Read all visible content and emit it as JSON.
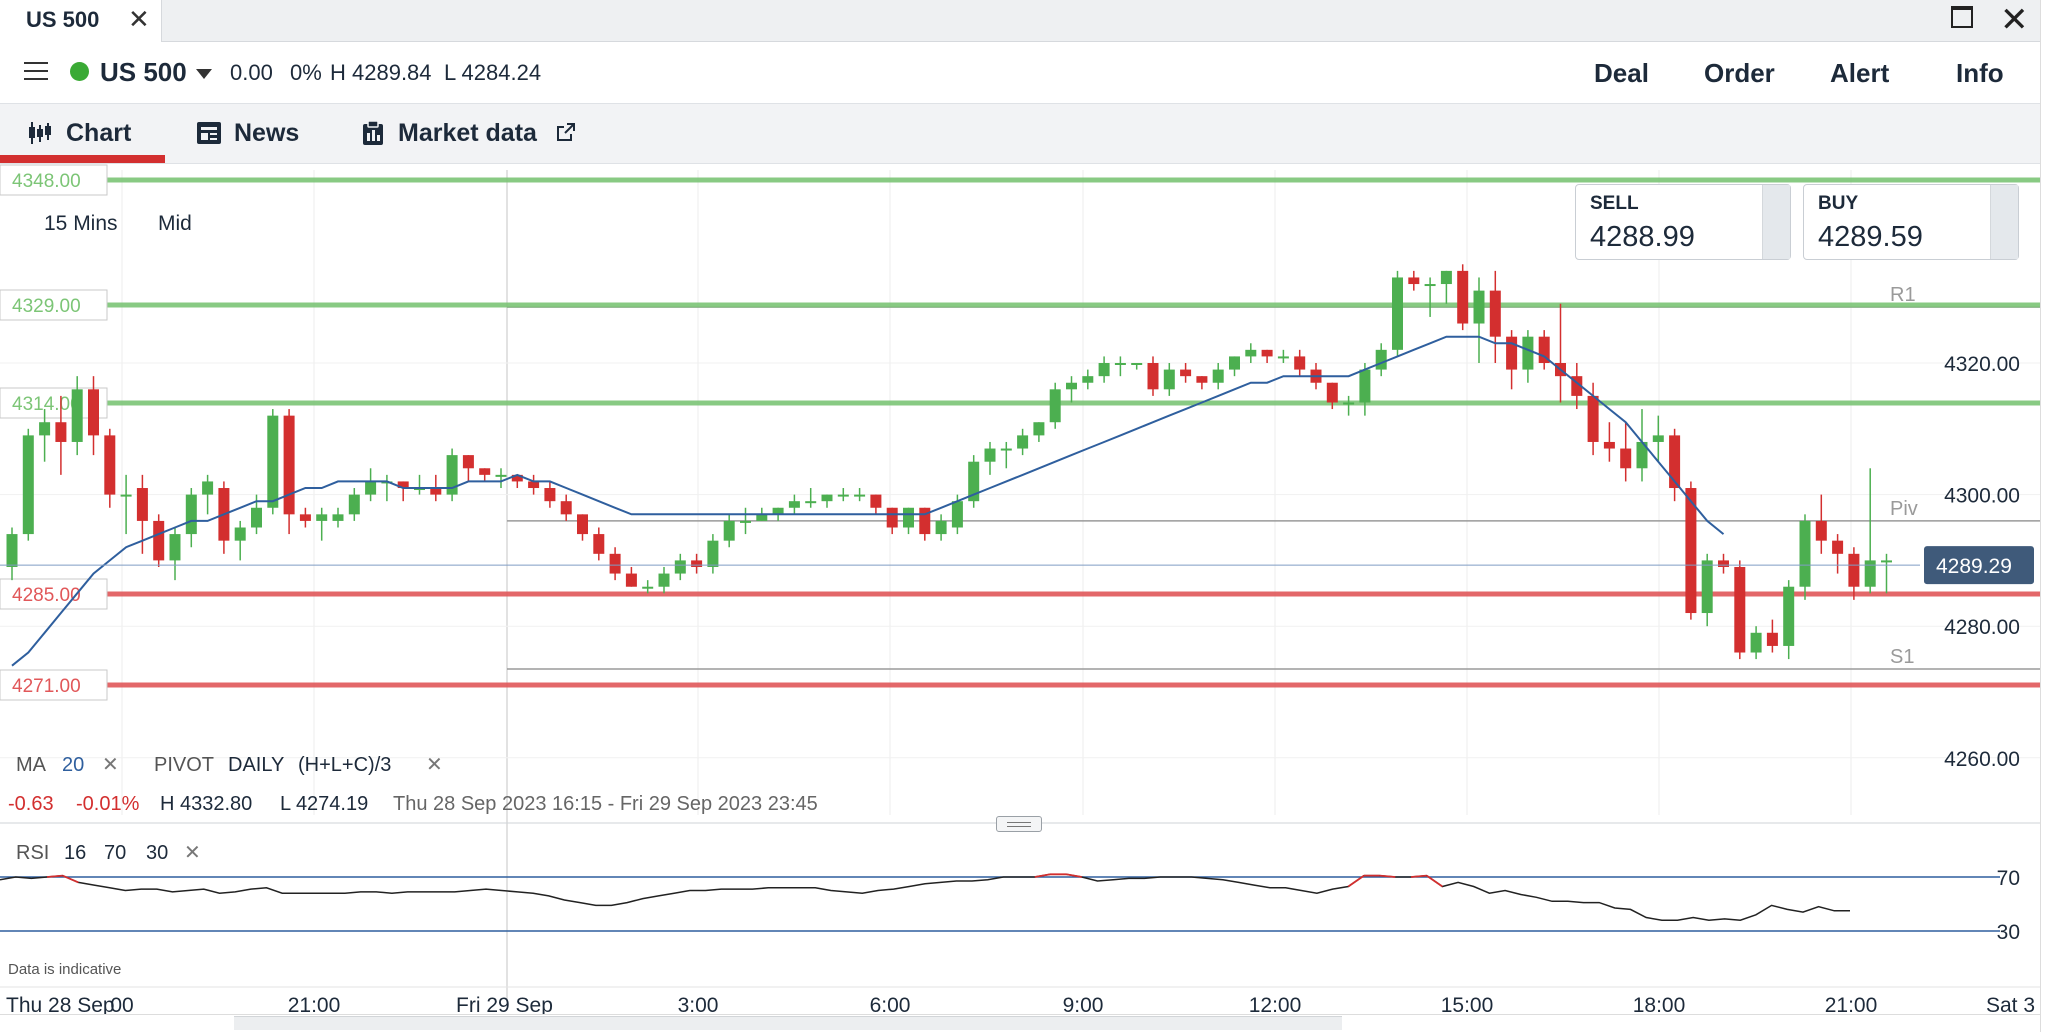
{
  "titlebar": {
    "tab_label": "US 500",
    "close_glyph": "✕",
    "win_close_glyph": "✕"
  },
  "header": {
    "instrument": "US 500",
    "change": "0.00",
    "change_pct": "0%",
    "high": "H 4289.84",
    "low": "L 4284.24",
    "actions": [
      "Deal",
      "Order",
      "Alert",
      "Info"
    ]
  },
  "tabs": [
    {
      "label": "Chart",
      "icon": "candlestick-icon",
      "active": true
    },
    {
      "label": "News",
      "icon": "newspaper-icon",
      "active": false
    },
    {
      "label": "Market data",
      "icon": "clipboard-icon",
      "active": false,
      "external_icon": "external-link-icon"
    }
  ],
  "chart": {
    "timeframe": "15 Mins",
    "price_type": "Mid",
    "sell_label": "SELL",
    "sell_price": "4288.99",
    "buy_label": "BUY",
    "buy_price": "4289.59",
    "ma_label": "MA",
    "ma_period": "20",
    "pivot_label": "PIVOT",
    "pivot_period": "DAILY",
    "pivot_formula": "(H+L+C)/3",
    "range_change": "-0.63",
    "range_change_pct": "-0.01%",
    "range_high": "H 4332.80",
    "range_low": "L 4274.19",
    "range_dates": "Thu 28 Sep 2023 16:15 - Fri 29 Sep 2023 23:45",
    "rsi_label": "RSI",
    "rsi_period": "16",
    "rsi_upper": "70",
    "rsi_lower": "30",
    "disclaimer": "Data is indicative",
    "colors": {
      "up": "#4caf50",
      "down": "#d32f2f",
      "ma": "#2f5f9e",
      "support": "#e15759",
      "resistance": "#7cc576"
    }
  },
  "chart_data": {
    "type": "candlestick",
    "title": "US 500",
    "interval": "15 Mins",
    "ylim": [
      4255,
      4350
    ],
    "y_ticks": [
      "4320.00",
      "4300.00",
      "4280.00",
      "4260.00"
    ],
    "x_ticks": [
      "Thu 28 Sep",
      "00",
      "21:00",
      "Fri 29 Sep",
      "3:00",
      "6:00",
      "9:00",
      "12:00",
      "15:00",
      "18:00",
      "21:00",
      "Sat 3"
    ],
    "last_price": "4289.29",
    "alert_levels": [
      {
        "label": "4348.00",
        "value": 4348,
        "kind": "resistance"
      },
      {
        "label": "4329.00",
        "value": 4329,
        "kind": "resistance"
      },
      {
        "label": "4314.00",
        "value": 4314,
        "kind": "resistance"
      },
      {
        "label": "4285.00",
        "value": 4285,
        "kind": "support"
      },
      {
        "label": "4271.00",
        "value": 4271,
        "kind": "support"
      }
    ],
    "pivots": [
      {
        "label": "R1",
        "value": 4328.5
      },
      {
        "label": "Piv",
        "value": 4296
      },
      {
        "label": "S1",
        "value": 4273.5
      }
    ],
    "candles": [
      [
        4289,
        4295,
        4287,
        4294
      ],
      [
        4294,
        4310,
        4293,
        4309
      ],
      [
        4309,
        4313,
        4305,
        4311
      ],
      [
        4311,
        4315,
        4303,
        4308
      ],
      [
        4308,
        4318,
        4306,
        4316
      ],
      [
        4316,
        4318,
        4306,
        4309
      ],
      [
        4309,
        4310,
        4298,
        4300
      ],
      [
        4300,
        4303,
        4294,
        4300
      ],
      [
        4301,
        4303,
        4291,
        4296
      ],
      [
        4296,
        4297,
        4289,
        4290
      ],
      [
        4290,
        4295,
        4287,
        4294
      ],
      [
        4294,
        4301,
        4292,
        4300
      ],
      [
        4300,
        4303,
        4297,
        4302
      ],
      [
        4301,
        4302,
        4291,
        4293
      ],
      [
        4293,
        4296,
        4290,
        4295
      ],
      [
        4295,
        4300,
        4294,
        4298
      ],
      [
        4298,
        4313,
        4297,
        4312
      ],
      [
        4312,
        4313,
        4294,
        4297
      ],
      [
        4297,
        4298,
        4295,
        4296
      ],
      [
        4296,
        4298,
        4293,
        4297
      ],
      [
        4296,
        4298,
        4295,
        4297
      ],
      [
        4297,
        4301,
        4296,
        4300
      ],
      [
        4300,
        4304,
        4299,
        4302
      ],
      [
        4302,
        4303,
        4299,
        4302
      ],
      [
        4302,
        4302,
        4299,
        4301
      ],
      [
        4301,
        4303,
        4300,
        4301
      ],
      [
        4301,
        4303,
        4299,
        4300
      ],
      [
        4300,
        4307,
        4299,
        4306
      ],
      [
        4306,
        4306,
        4302,
        4304
      ],
      [
        4304,
        4304,
        4302,
        4303
      ],
      [
        4303,
        4304,
        4301,
        4303
      ],
      [
        4303,
        4303,
        4301,
        4302
      ],
      [
        4302,
        4303,
        4300,
        4301
      ],
      [
        4301,
        4302,
        4298,
        4299
      ],
      [
        4299,
        4300,
        4296,
        4297
      ],
      [
        4297,
        4297,
        4293,
        4294
      ],
      [
        4294,
        4295,
        4290,
        4291
      ],
      [
        4291,
        4292,
        4287,
        4288
      ],
      [
        4288,
        4289,
        4286,
        4286
      ],
      [
        4286,
        4287,
        4285,
        4286
      ],
      [
        4286,
        4289,
        4285,
        4288
      ],
      [
        4288,
        4291,
        4287,
        4290
      ],
      [
        4290,
        4291,
        4288,
        4289
      ],
      [
        4289,
        4294,
        4288,
        4293
      ],
      [
        4293,
        4297,
        4292,
        4296
      ],
      [
        4296,
        4298,
        4294,
        4296
      ],
      [
        4296,
        4298,
        4296,
        4297
      ],
      [
        4297,
        4298,
        4296,
        4298
      ],
      [
        4298,
        4300,
        4297,
        4299
      ],
      [
        4299,
        4301,
        4298,
        4299
      ],
      [
        4299,
        4300,
        4298,
        4300
      ],
      [
        4300,
        4301,
        4299,
        4300
      ],
      [
        4300,
        4301,
        4299,
        4300
      ],
      [
        4300,
        4300,
        4297,
        4298
      ],
      [
        4298,
        4298,
        4294,
        4295
      ],
      [
        4295,
        4298,
        4294,
        4298
      ],
      [
        4298,
        4298,
        4293,
        4294
      ],
      [
        4294,
        4297,
        4293,
        4296
      ],
      [
        4295,
        4300,
        4294,
        4299
      ],
      [
        4299,
        4306,
        4298,
        4305
      ],
      [
        4305,
        4308,
        4303,
        4307
      ],
      [
        4307,
        4308,
        4304,
        4307
      ],
      [
        4307,
        4310,
        4306,
        4309
      ],
      [
        4309,
        4311,
        4308,
        4311
      ],
      [
        4311,
        4317,
        4310,
        4316
      ],
      [
        4316,
        4318,
        4314,
        4317
      ],
      [
        4317,
        4319,
        4316,
        4318
      ],
      [
        4318,
        4321,
        4317,
        4320
      ],
      [
        4320,
        4321,
        4318,
        4320
      ],
      [
        4320,
        4320,
        4319,
        4320
      ],
      [
        4320,
        4321,
        4315,
        4316
      ],
      [
        4316,
        4320,
        4315,
        4319
      ],
      [
        4319,
        4320,
        4317,
        4318
      ],
      [
        4318,
        4318,
        4316,
        4317
      ],
      [
        4317,
        4320,
        4316,
        4319
      ],
      [
        4319,
        4321,
        4318,
        4321
      ],
      [
        4321,
        4323,
        4320,
        4322
      ],
      [
        4322,
        4322,
        4320,
        4321
      ],
      [
        4321,
        4322,
        4320,
        4321
      ],
      [
        4321,
        4322,
        4318,
        4319
      ],
      [
        4319,
        4320,
        4316,
        4317
      ],
      [
        4317,
        4317,
        4313,
        4314
      ],
      [
        4314,
        4315,
        4312,
        4314
      ],
      [
        4314,
        4320,
        4312,
        4319
      ],
      [
        4319,
        4323,
        4318,
        4322
      ],
      [
        4322,
        4334,
        4321,
        4333
      ],
      [
        4333,
        4334,
        4331,
        4332
      ],
      [
        4332,
        4333,
        4327,
        4332
      ],
      [
        4332,
        4334,
        4329,
        4334
      ],
      [
        4334,
        4335,
        4325,
        4326
      ],
      [
        4326,
        4333,
        4320,
        4331
      ],
      [
        4331,
        4334,
        4320,
        4324
      ],
      [
        4324,
        4325,
        4316,
        4319
      ],
      [
        4319,
        4325,
        4317,
        4324
      ],
      [
        4324,
        4325,
        4319,
        4320
      ],
      [
        4320,
        4329,
        4314,
        4318
      ],
      [
        4318,
        4320,
        4313,
        4315
      ],
      [
        4315,
        4317,
        4306,
        4308
      ],
      [
        4308,
        4311,
        4305,
        4307
      ],
      [
        4307,
        4311,
        4302,
        4304
      ],
      [
        4304,
        4313,
        4302,
        4308
      ],
      [
        4308,
        4312,
        4305,
        4309
      ],
      [
        4309,
        4310,
        4299,
        4301
      ],
      [
        4301,
        4302,
        4281,
        4282
      ],
      [
        4282,
        4291,
        4280,
        4290
      ],
      [
        4290,
        4291,
        4288,
        4289
      ],
      [
        4289,
        4290,
        4275,
        4276
      ],
      [
        4276,
        4280,
        4275,
        4279
      ],
      [
        4279,
        4281,
        4276,
        4277
      ],
      [
        4277,
        4287,
        4275,
        4286
      ],
      [
        4286,
        4297,
        4284,
        4296
      ],
      [
        4296,
        4300,
        4291,
        4293
      ],
      [
        4293,
        4294,
        4288,
        4291
      ],
      [
        4291,
        4292,
        4284,
        4286
      ],
      [
        4286,
        4304,
        4285,
        4290
      ],
      [
        4290,
        4291,
        4285,
        4290
      ]
    ],
    "moving_average": {
      "name": "MA 20",
      "values": [
        4274,
        4276,
        4279,
        4282,
        4285,
        4288,
        4290,
        4292,
        4293,
        4294,
        4295,
        4296,
        4296,
        4297,
        4298,
        4299,
        4299,
        4300,
        4301,
        4301,
        4302,
        4302,
        4302,
        4302,
        4301,
        4301,
        4301,
        4301,
        4302,
        4302,
        4302,
        4303,
        4302,
        4302,
        4301,
        4300,
        4299,
        4298,
        4297,
        4297,
        4297,
        4297,
        4297,
        4297,
        4297,
        4297,
        4297,
        4297,
        4297,
        4297,
        4297,
        4297,
        4297,
        4297,
        4297,
        4297,
        4297,
        4298,
        4299,
        4300,
        4301,
        4302,
        4303,
        4304,
        4305,
        4306,
        4307,
        4308,
        4309,
        4310,
        4311,
        4312,
        4313,
        4314,
        4315,
        4316,
        4317,
        4317,
        4318,
        4318,
        4318,
        4318,
        4318,
        4319,
        4320,
        4321,
        4322,
        4323,
        4324,
        4324,
        4324,
        4323,
        4323,
        4322,
        4321,
        4319,
        4317,
        4315,
        4313,
        4311,
        4308,
        4305,
        4302,
        4299,
        4296,
        4294
      ]
    },
    "rsi": {
      "name": "RSI 16",
      "values": [
        68,
        70,
        69,
        70,
        71,
        66,
        64,
        62,
        60,
        61,
        61,
        59,
        60,
        61,
        58,
        59,
        61,
        62,
        58,
        58,
        58,
        58,
        58,
        59,
        59,
        58,
        59,
        59,
        59,
        59,
        60,
        61,
        60,
        59,
        58,
        56,
        53,
        51,
        49,
        49,
        51,
        54,
        56,
        58,
        60,
        60,
        61,
        61,
        61,
        62,
        62,
        62,
        62,
        60,
        59,
        58,
        60,
        61,
        63,
        65,
        66,
        67,
        67,
        68,
        70,
        70,
        70,
        72,
        72,
        70,
        67,
        68,
        69,
        69,
        70,
        70,
        70,
        69,
        68,
        66,
        64,
        62,
        62,
        60,
        58,
        61,
        63,
        71,
        71,
        70,
        70,
        71,
        63,
        66,
        63,
        58,
        60,
        57,
        55,
        52,
        52,
        51,
        51,
        47,
        46,
        40,
        38,
        38,
        40,
        38,
        39,
        38,
        42,
        49,
        46,
        44,
        48,
        45,
        45
      ]
    }
  }
}
